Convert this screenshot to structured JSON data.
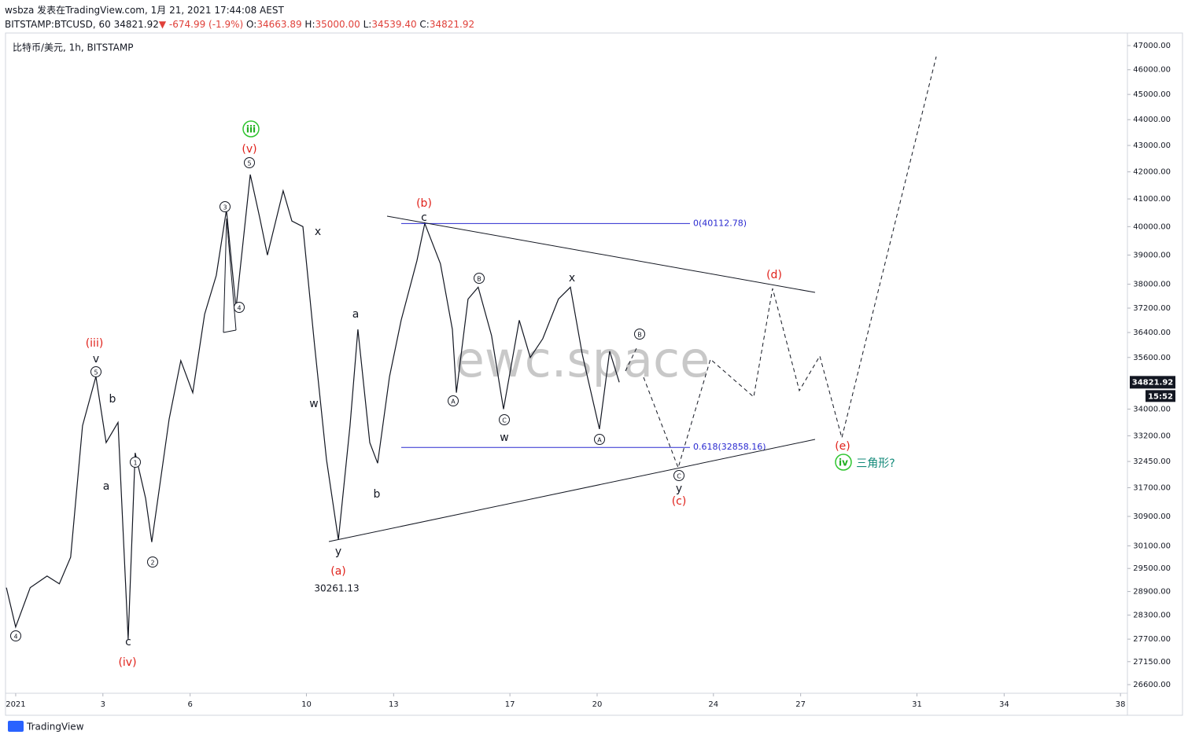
{
  "header": {
    "author_line": "wsbza 发表在TradingView.com, 1月 21, 2021 17:44:08 AEST",
    "symbol": "BITSTAMP:BTCUSD, 60",
    "last": "34821.92",
    "change_arrow": "▼",
    "change": "-674.99 (-1.9%)",
    "ohlc": [
      [
        "O:",
        "34663.89"
      ],
      [
        "H:",
        "35000.00"
      ],
      [
        "L:",
        "34539.40"
      ],
      [
        "C:",
        "34821.92"
      ]
    ]
  },
  "legend": "比特币/美元, 1h, BITSTAMP",
  "watermark": "ewc.space",
  "footer": "TradingView",
  "price_scale": {
    "last_price": 34821.92,
    "countdown": "15:52"
  },
  "fib_levels": [
    {
      "value": 40112.78,
      "label": "0(40112.78)"
    },
    {
      "value": 32858.16,
      "label": "0.618(32858.16)"
    }
  ],
  "annotations": [
    "iii",
    "(v)",
    "5",
    "3",
    "4",
    "x",
    "(iii)",
    "v",
    "5",
    "b",
    "a",
    "1",
    "2",
    "c",
    "(iv)",
    "4",
    "w",
    "a",
    "b",
    "y",
    "(a)",
    "30261.13",
    "(b)",
    "c",
    "A",
    "B",
    "C",
    "w",
    "x",
    "A",
    "B",
    "C",
    "y",
    "(c)",
    "(d)",
    "(e)",
    "iv",
    "三角形?"
  ],
  "chart_data": {
    "type": "line",
    "color": "#131722",
    "log_scale": true,
    "grid": false,
    "x": [
      -0.32,
      0,
      0.5,
      1.08,
      1.5,
      1.89,
      2.3,
      2.76,
      3.11,
      3.52,
      3.87,
      4.11,
      4.47,
      4.68,
      5.28,
      5.68,
      6.09,
      6.5,
      6.9,
      7.25,
      7.58,
      8.07,
      8.4,
      8.66,
      9.2,
      9.5,
      9.88,
      10.28,
      10.69,
      11.1,
      11.5,
      11.77,
      12.18,
      12.45,
      12.86,
      13.26,
      13.8,
      14.07,
      14.61,
      15.02,
      15.16,
      15.56,
      15.91,
      16.37,
      16.78,
      17.32,
      17.7,
      18.13,
      18.67,
      19.08,
      19.49,
      20.08,
      20.43,
      20.76
    ],
    "values": [
      29000,
      28000,
      29000,
      29300,
      29100,
      29800,
      33500,
      35000,
      33000,
      33600,
      27700,
      32700,
      31400,
      30200,
      33700,
      35500,
      34500,
      37000,
      38300,
      40600,
      37200,
      41900,
      40300,
      39000,
      41300,
      40200,
      40000,
      36000,
      32500,
      30261.13,
      33500,
      36500,
      33000,
      32400,
      35000,
      36800,
      38800,
      40112.78,
      38700,
      36500,
      34500,
      37500,
      37900,
      36300,
      34000,
      36800,
      35600,
      36200,
      37500,
      37900,
      35700,
      33400,
      35800,
      34821.92
    ],
    "xlim": [
      -0.35,
      38.24
    ],
    "xticks": [
      {
        "value": 0,
        "label": "2021"
      },
      3,
      6,
      10,
      13,
      17,
      20,
      24,
      27,
      31,
      34,
      38
    ],
    "xtick_labels_note_free": null,
    "ylim": [
      26396,
      47530
    ],
    "yticks": [
      {
        "value": 47000,
        "label": "47000.00"
      },
      {
        "value": 46000,
        "label": "46000.00"
      },
      {
        "value": 45000,
        "label": "45000.00"
      },
      {
        "value": 44000,
        "label": "44000.00"
      },
      {
        "value": 43000,
        "label": "43000.00"
      },
      {
        "value": 42000,
        "label": "42000.00"
      },
      {
        "value": 41000,
        "label": "41000.00"
      },
      {
        "value": 40000,
        "label": "40000.00"
      },
      {
        "value": 39000,
        "label": "39000.00"
      },
      {
        "value": 38000,
        "label": "38000.00"
      },
      {
        "value": 37200,
        "label": "37200.00"
      },
      {
        "value": 36400,
        "label": "36400.00"
      },
      {
        "value": 35600,
        "label": "35600.00"
      },
      {
        "value": 34000,
        "label": "34000.00"
      },
      {
        "value": 33200,
        "label": "33200.00"
      },
      {
        "value": 32450,
        "label": "32450.00"
      },
      {
        "value": 31700,
        "label": "31700.00"
      },
      {
        "value": 30900,
        "label": "30900.00"
      },
      {
        "value": 30100,
        "label": "30100.00"
      },
      {
        "value": 29500,
        "label": "29500.00"
      },
      {
        "value": 28900,
        "label": "28900.00"
      },
      {
        "value": 28300,
        "label": "28300.00"
      },
      {
        "value": 27700,
        "label": "27700.00"
      },
      {
        "value": 27150,
        "label": "27150.00"
      },
      {
        "value": 26600,
        "label": "26600.00"
      }
    ]
  }
}
